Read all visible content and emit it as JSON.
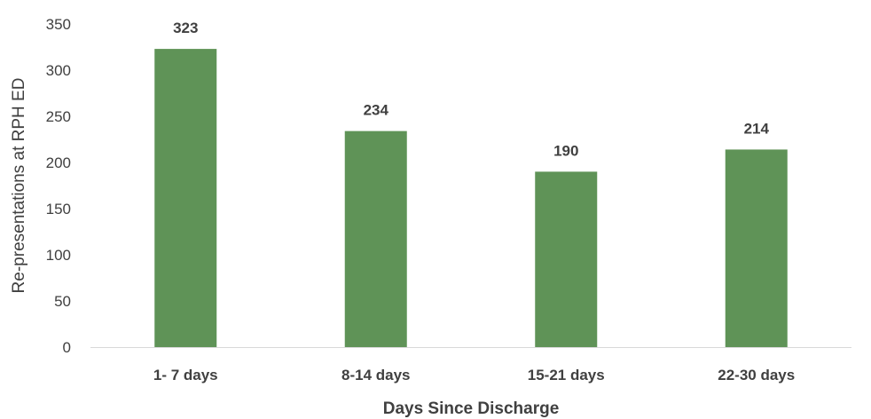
{
  "chart_data": {
    "type": "bar",
    "title": "",
    "xlabel": "Days Since Discharge",
    "ylabel": "Re-presentations at RPH ED",
    "categories": [
      "1- 7 days",
      "8-14 days",
      "15-21 days",
      "22-30 days"
    ],
    "values": [
      323,
      234,
      190,
      214
    ],
    "data_labels": [
      "323",
      "234",
      "190",
      "214"
    ],
    "ylim": [
      0,
      350
    ],
    "yticks": [
      0,
      50,
      100,
      150,
      200,
      250,
      300,
      350
    ],
    "ytick_labels": [
      "0",
      "50",
      "100",
      "150",
      "200",
      "250",
      "300",
      "350"
    ],
    "grid": false,
    "legend": "none",
    "bar_color": "#5f9357"
  }
}
